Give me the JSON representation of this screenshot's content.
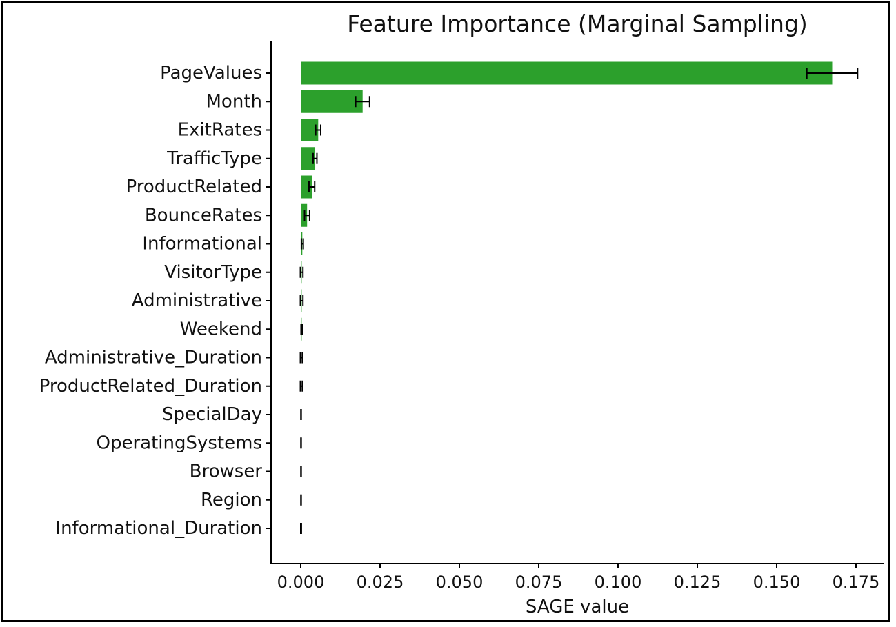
{
  "chart_data": {
    "type": "bar",
    "orientation": "horizontal",
    "title": "Feature Importance (Marginal Sampling)",
    "xlabel": "SAGE value",
    "ylabel": "",
    "xlim": [
      -0.009,
      0.1775
    ],
    "xticks": [
      0.0,
      0.025,
      0.05,
      0.075,
      0.1,
      0.125,
      0.15,
      0.175
    ],
    "xtick_labels": [
      "0.000",
      "0.025",
      "0.050",
      "0.075",
      "0.100",
      "0.125",
      "0.150",
      "0.175"
    ],
    "grid": false,
    "bar_color": "#2ca02c",
    "error_color": "#000000",
    "categories": [
      "PageValues",
      "Month",
      "ExitRates",
      "TrafficType",
      "ProductRelated",
      "BounceRates",
      "Informational",
      "VisitorType",
      "Administrative",
      "Weekend",
      "Administrative_Duration",
      "ProductRelated_Duration",
      "SpecialDay",
      "OperatingSystems",
      "Browser",
      "Region",
      "Informational_Duration"
    ],
    "values": [
      0.1675,
      0.0195,
      0.0055,
      0.0045,
      0.0035,
      0.002,
      0.0005,
      0.0003,
      0.0003,
      0.0003,
      0.0002,
      0.0002,
      0.0001,
      0.0001,
      0.0001,
      0.0001,
      0.0001
    ],
    "errors": [
      0.008,
      0.0022,
      0.0008,
      0.0006,
      0.0009,
      0.0008,
      0.0003,
      0.0004,
      0.0004,
      0.0002,
      0.0003,
      0.0003,
      5e-05,
      5e-05,
      5e-05,
      5e-05,
      0.0001
    ]
  }
}
